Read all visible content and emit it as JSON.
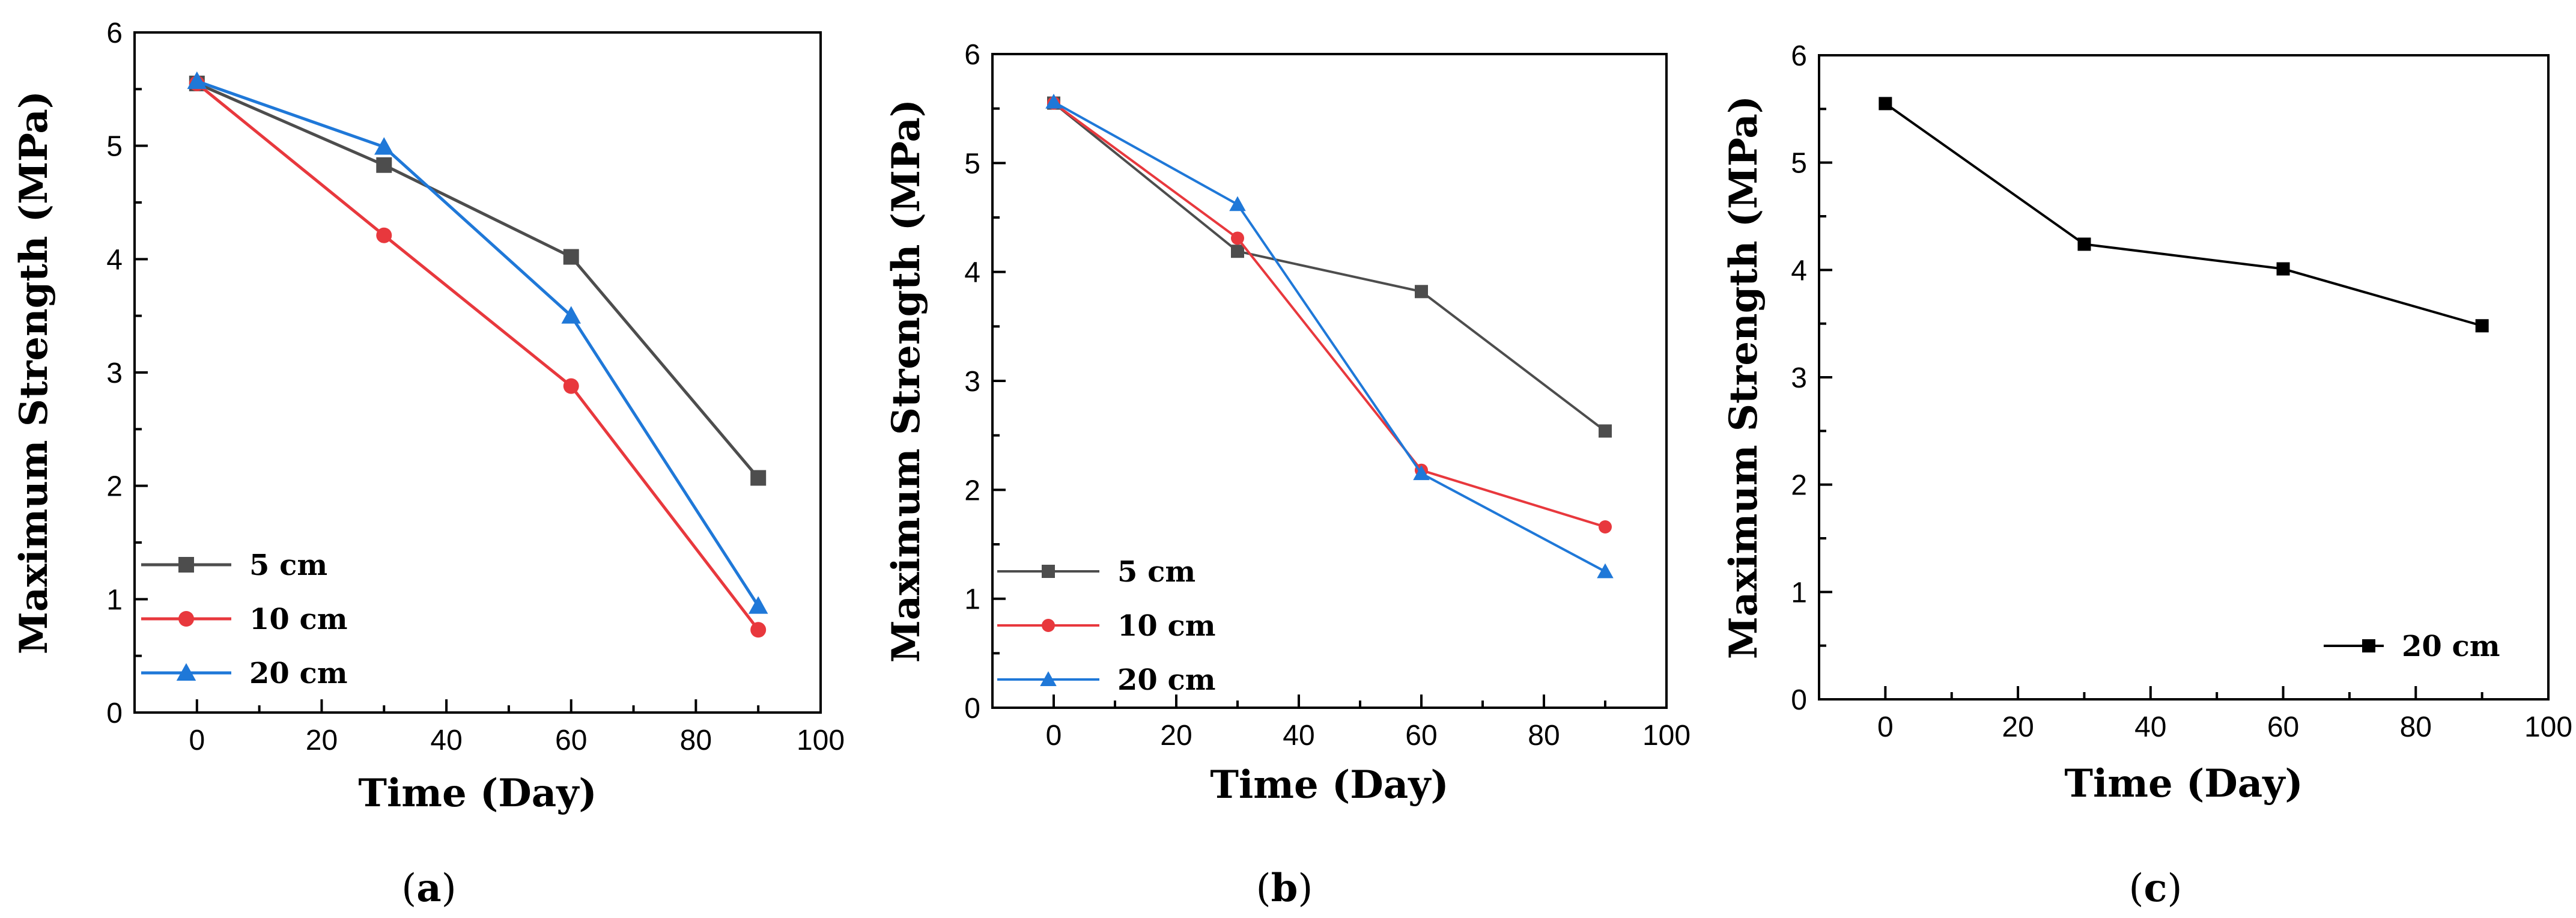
{
  "chart_data": [
    {
      "type": "line",
      "panel_label": "a",
      "xlabel": "Time (Day)",
      "ylabel": "Maximum Strength (MPa)",
      "xlim": [
        -10,
        100
      ],
      "ylim": [
        0,
        6
      ],
      "xticks": [
        0,
        20,
        40,
        60,
        80,
        100
      ],
      "yticks": [
        0,
        1,
        2,
        3,
        4,
        5,
        6
      ],
      "legend_position": "bottom-left",
      "grid": false,
      "x": [
        0,
        30,
        60,
        90
      ],
      "series": [
        {
          "name": "5 cm",
          "color": "#4d4d4d",
          "marker": "square",
          "values": [
            5.55,
            4.83,
            4.02,
            2.07
          ]
        },
        {
          "name": "10 cm",
          "color": "#e8383d",
          "marker": "circle",
          "values": [
            5.55,
            4.21,
            2.88,
            0.73
          ]
        },
        {
          "name": "20 cm",
          "color": "#1f78d8",
          "marker": "triangle",
          "values": [
            5.57,
            4.99,
            3.5,
            0.94
          ]
        }
      ]
    },
    {
      "type": "line",
      "panel_label": "b",
      "xlabel": "Time (Day)",
      "ylabel": "Maximum Strength (MPa)",
      "xlim": [
        -10,
        100
      ],
      "ylim": [
        0,
        6
      ],
      "xticks": [
        0,
        20,
        40,
        60,
        80,
        100
      ],
      "yticks": [
        0,
        1,
        2,
        3,
        4,
        5,
        6
      ],
      "legend_position": "bottom-left",
      "grid": false,
      "x": [
        0,
        30,
        60,
        90
      ],
      "series": [
        {
          "name": "5 cm",
          "color": "#4d4d4d",
          "marker": "square",
          "values": [
            5.55,
            4.19,
            3.82,
            2.54
          ]
        },
        {
          "name": "10 cm",
          "color": "#e8383d",
          "marker": "circle",
          "values": [
            5.55,
            4.31,
            2.18,
            1.66
          ]
        },
        {
          "name": "20 cm",
          "color": "#1f78d8",
          "marker": "triangle",
          "values": [
            5.56,
            4.62,
            2.15,
            1.25
          ]
        }
      ]
    },
    {
      "type": "line",
      "panel_label": "c",
      "xlabel": "Time (Day)",
      "ylabel": "Maximum Strength (MPa)",
      "xlim": [
        -10,
        100
      ],
      "ylim": [
        0,
        6
      ],
      "xticks": [
        0,
        20,
        40,
        60,
        80,
        100
      ],
      "yticks": [
        0,
        1,
        2,
        3,
        4,
        5,
        6
      ],
      "legend_position": "bottom-right",
      "grid": false,
      "x": [
        0,
        30,
        60,
        90
      ],
      "series": [
        {
          "name": "20 cm",
          "color": "#000000",
          "marker": "square",
          "values": [
            5.55,
            4.24,
            4.01,
            3.48
          ]
        }
      ]
    }
  ]
}
